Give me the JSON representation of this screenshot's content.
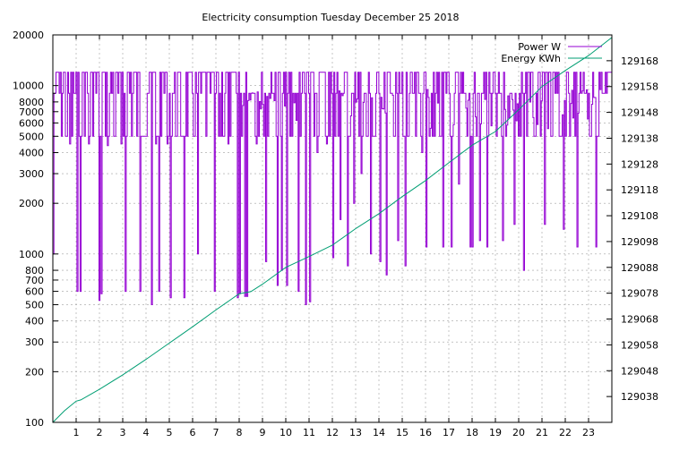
{
  "chart_data": {
    "type": "line",
    "title": "Electricity consumption Tuesday December 25 2018",
    "x_ticks": [
      1,
      2,
      3,
      4,
      5,
      6,
      7,
      8,
      9,
      10,
      11,
      12,
      13,
      14,
      15,
      16,
      17,
      18,
      19,
      20,
      21,
      22,
      23
    ],
    "x_range": [
      0,
      24
    ],
    "y_left": {
      "scale": "log",
      "range": [
        100,
        20000
      ],
      "ticks": [
        100,
        200,
        300,
        400,
        500,
        600,
        700,
        800,
        1000,
        2000,
        3000,
        4000,
        5000,
        6000,
        7000,
        8000,
        10000,
        20000
      ]
    },
    "y_right": {
      "range": [
        129028,
        129178
      ],
      "ticks": [
        129038,
        129048,
        129058,
        129068,
        129078,
        129088,
        129098,
        129108,
        129118,
        129128,
        129138,
        129148,
        129158,
        129168
      ]
    },
    "grid": true,
    "legend_position": "top-right",
    "colors": {
      "power": "#9400d3",
      "energy": "#009e73"
    },
    "series": [
      {
        "name": "Power W",
        "axis": "left",
        "levels": {
          "base": 5000,
          "mid": 9000,
          "high": 12000
        },
        "dips": [
          [
            0.0,
            1000
          ],
          [
            0.7,
            4500
          ],
          [
            1.0,
            600
          ],
          [
            1.15,
            600
          ],
          [
            1.5,
            4500
          ],
          [
            1.95,
            530
          ],
          [
            2.05,
            580
          ],
          [
            2.3,
            4400
          ],
          [
            2.9,
            4500
          ],
          [
            3.1,
            600
          ],
          [
            3.7,
            600
          ],
          [
            4.2,
            500
          ],
          [
            4.4,
            4500
          ],
          [
            4.5,
            600
          ],
          [
            4.9,
            4500
          ],
          [
            5.0,
            550
          ],
          [
            5.6,
            550
          ],
          [
            6.2,
            1000
          ],
          [
            6.9,
            600
          ],
          [
            7.5,
            4500
          ],
          [
            7.9,
            550
          ],
          [
            8.0,
            580
          ],
          [
            8.2,
            560
          ],
          [
            8.3,
            560
          ],
          [
            8.7,
            4500
          ],
          [
            9.1,
            900
          ],
          [
            9.6,
            650
          ],
          [
            9.8,
            800
          ],
          [
            10.0,
            650
          ],
          [
            10.5,
            600
          ],
          [
            10.8,
            500
          ],
          [
            11.0,
            520
          ],
          [
            11.3,
            4000
          ],
          [
            11.7,
            4500
          ],
          [
            12.0,
            950
          ],
          [
            12.3,
            1600
          ],
          [
            12.6,
            850
          ],
          [
            12.9,
            2000
          ],
          [
            13.2,
            3000
          ],
          [
            13.6,
            1000
          ],
          [
            14.0,
            900
          ],
          [
            14.3,
            750
          ],
          [
            14.8,
            1200
          ],
          [
            15.1,
            850
          ],
          [
            15.8,
            4000
          ],
          [
            16.0,
            1100
          ],
          [
            16.7,
            1100
          ],
          [
            17.1,
            1100
          ],
          [
            17.4,
            2600
          ],
          [
            17.9,
            1100
          ],
          [
            18.0,
            1100
          ],
          [
            18.3,
            1200
          ],
          [
            18.6,
            1100
          ],
          [
            19.3,
            1200
          ],
          [
            19.8,
            1500
          ],
          [
            20.2,
            800
          ],
          [
            21.1,
            1500
          ],
          [
            21.9,
            1400
          ],
          [
            22.5,
            1100
          ],
          [
            23.3,
            1100
          ]
        ]
      },
      {
        "name": "Energy KWh",
        "axis": "right",
        "points": [
          [
            0,
            129028
          ],
          [
            0.5,
            129032.5
          ],
          [
            1.0,
            129036.2
          ],
          [
            1.2,
            129036.7
          ],
          [
            2.0,
            129040.8
          ],
          [
            3.0,
            129046.4
          ],
          [
            4.0,
            129052.4
          ],
          [
            5.0,
            129058.7
          ],
          [
            6.0,
            129065.0
          ],
          [
            7.0,
            129071.5
          ],
          [
            8.0,
            129077.8
          ],
          [
            8.5,
            129078.6
          ],
          [
            9.0,
            129081.5
          ],
          [
            10.0,
            129088.0
          ],
          [
            11.0,
            129092.2
          ],
          [
            12.0,
            129096.6
          ],
          [
            13.0,
            129103.0
          ],
          [
            14.0,
            129108.8
          ],
          [
            15.0,
            129115.4
          ],
          [
            16.0,
            129121.6
          ],
          [
            17.0,
            129128.5
          ],
          [
            18.0,
            129135.3
          ],
          [
            19.0,
            129140.6
          ],
          [
            20.0,
            129149.0
          ],
          [
            21.0,
            129158.0
          ],
          [
            22.0,
            129164.2
          ],
          [
            23.0,
            129170.0
          ],
          [
            24.0,
            129177.0
          ]
        ]
      }
    ]
  }
}
